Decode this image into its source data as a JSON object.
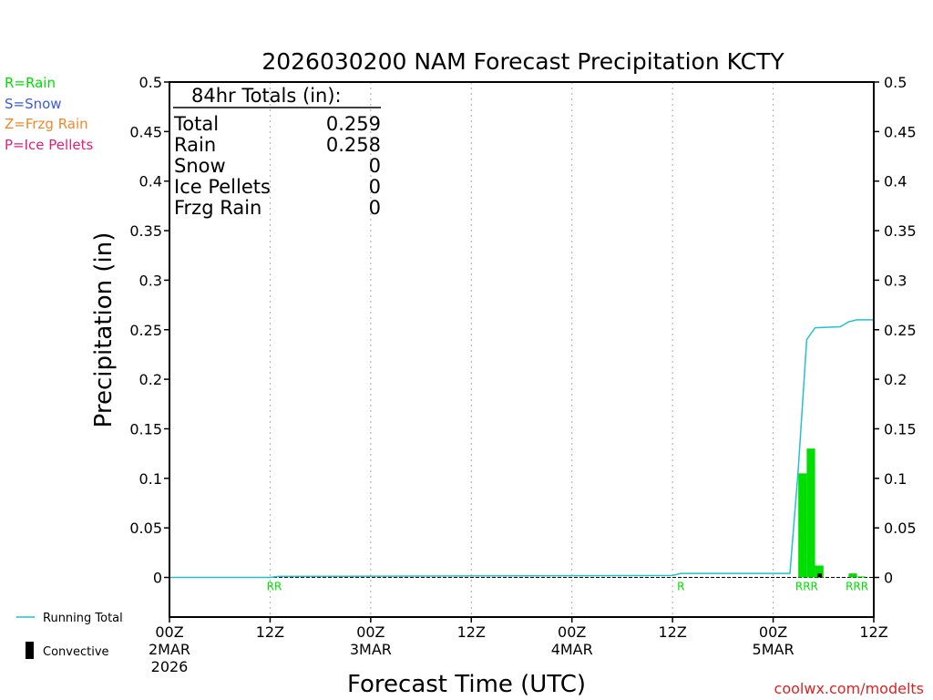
{
  "chart_data": {
    "type": "bar",
    "title": "2026030200 NAM Forecast Precipitation KCTY",
    "xlabel": "Forecast Time (UTC)",
    "ylabel": "Precipitation (in)",
    "ylim": [
      -0.04,
      0.5
    ],
    "xlim_hours": [
      0,
      84
    ],
    "y_ticks": [
      "0",
      "0.05",
      "0.1",
      "0.15",
      "0.2",
      "0.25",
      "0.3",
      "0.35",
      "0.4",
      "0.45",
      "0.5"
    ],
    "x_ticks": [
      {
        "h": 0,
        "line1": "00Z",
        "line2": "2MAR",
        "line3": "2026"
      },
      {
        "h": 12,
        "line1": "12Z",
        "line2": "",
        "line3": ""
      },
      {
        "h": 24,
        "line1": "00Z",
        "line2": "3MAR",
        "line3": ""
      },
      {
        "h": 36,
        "line1": "12Z",
        "line2": "",
        "line3": ""
      },
      {
        "h": 48,
        "line1": "00Z",
        "line2": "4MAR",
        "line3": ""
      },
      {
        "h": 60,
        "line1": "12Z",
        "line2": "",
        "line3": ""
      },
      {
        "h": 72,
        "line1": "00Z",
        "line2": "5MAR",
        "line3": ""
      },
      {
        "h": 84,
        "line1": "12Z",
        "line2": "",
        "line3": ""
      }
    ],
    "grid_x_hours": [
      12,
      24,
      36,
      48,
      60,
      72
    ],
    "bars": [
      {
        "h0": 75,
        "h1": 76,
        "value": 0.105,
        "type": "rain"
      },
      {
        "h0": 76,
        "h1": 77,
        "value": 0.13,
        "type": "rain"
      },
      {
        "h0": 77,
        "h1": 78,
        "value": 0.012,
        "type": "rain"
      },
      {
        "h0": 81,
        "h1": 82,
        "value": 0.004,
        "type": "rain"
      },
      {
        "h0": 82,
        "h1": 83,
        "value": 0.001,
        "type": "rain"
      }
    ],
    "convective": [
      {
        "h0": 77.3,
        "h1": 77.8,
        "value": 0.004
      }
    ],
    "running_total": [
      [
        0,
        0
      ],
      [
        12,
        0
      ],
      [
        13,
        0.001
      ],
      [
        60,
        0.002
      ],
      [
        61,
        0.004
      ],
      [
        74,
        0.004
      ],
      [
        75,
        0.11
      ],
      [
        76,
        0.24
      ],
      [
        77,
        0.252
      ],
      [
        80,
        0.253
      ],
      [
        81,
        0.258
      ],
      [
        82,
        0.26
      ],
      [
        84,
        0.26
      ]
    ],
    "ptype_labels": [
      {
        "h": 12.5,
        "text": "RR"
      },
      {
        "h": 61,
        "text": "R"
      },
      {
        "h": 76,
        "text": "RRR"
      },
      {
        "h": 82,
        "text": "RRR"
      }
    ],
    "totals": {
      "header": "84hr Totals (in):",
      "rows": [
        {
          "label": "Total",
          "value": "0.259"
        },
        {
          "label": "Rain",
          "value": "0.258"
        },
        {
          "label": "Snow",
          "value": "0"
        },
        {
          "label": "Ice Pellets",
          "value": "0"
        },
        {
          "label": "Frzg Rain",
          "value": "0"
        }
      ]
    },
    "ptype_legend": [
      {
        "text": "R=Rain",
        "color": "#00dd00"
      },
      {
        "text": "S=Snow",
        "color": "#3b5bdb"
      },
      {
        "text": "Z=Frzg Rain",
        "color": "#f0882a"
      },
      {
        "text": "P=Ice Pellets",
        "color": "#e0207a"
      }
    ],
    "series_legend": {
      "running_total": "Running Total",
      "convective": "Convective"
    },
    "credit": "coolwx.com/modelts",
    "colors": {
      "rain": "#00dd00",
      "running_total": "#22c2cc",
      "convective": "#000000",
      "credit": "#dd2222",
      "grid": "#aaaaaa"
    }
  }
}
